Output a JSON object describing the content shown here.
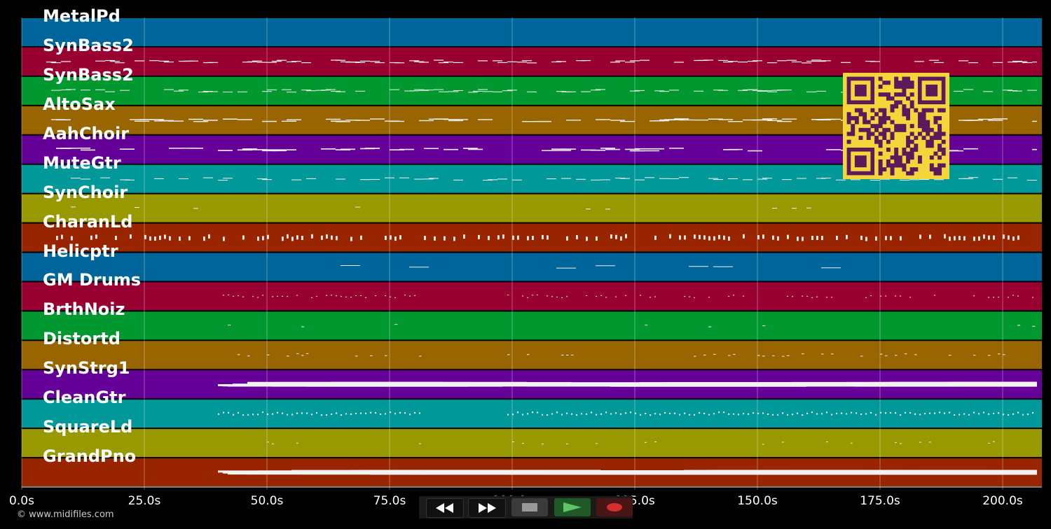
{
  "tracks": [
    {
      "name": "MetalPd",
      "color": "#00659a"
    },
    {
      "name": "SynBass2",
      "color": "#980032"
    },
    {
      "name": "SynBass2",
      "color": "#00982f"
    },
    {
      "name": "AltoSax",
      "color": "#986500"
    },
    {
      "name": "AahChoir",
      "color": "#650098"
    },
    {
      "name": "MuteGtr",
      "color": "#009898"
    },
    {
      "name": "SynChoir",
      "color": "#989800"
    },
    {
      "name": "CharanLd",
      "color": "#982500"
    },
    {
      "name": "Helicptr",
      "color": "#00659a"
    },
    {
      "name": "GM Drums",
      "color": "#980032"
    },
    {
      "name": "BrthNoiz",
      "color": "#00982f"
    },
    {
      "name": "Distortd",
      "color": "#986500"
    },
    {
      "name": "SynStrg1",
      "color": "#650098"
    },
    {
      "name": "CleanGtr",
      "color": "#009898"
    },
    {
      "name": "SquareLd",
      "color": "#989800"
    },
    {
      "name": "GrandPno",
      "color": "#982500"
    }
  ],
  "time_axis": {
    "ticks": [
      "0.0s",
      "25.0s",
      "50.0s",
      "75.0s",
      "100.0s",
      "125.0s",
      "150.0s",
      "175.0s",
      "200.0s"
    ],
    "tick_values": [
      0,
      25,
      50,
      75,
      100,
      125,
      150,
      175,
      200
    ],
    "max_seconds": 208
  },
  "copyright": "© www.midifiles.com",
  "transport": {
    "rewind": "rewind-icon",
    "fast_forward": "fast-forward-icon",
    "stop": "stop-icon",
    "play": "play-icon",
    "record": "record-icon"
  }
}
